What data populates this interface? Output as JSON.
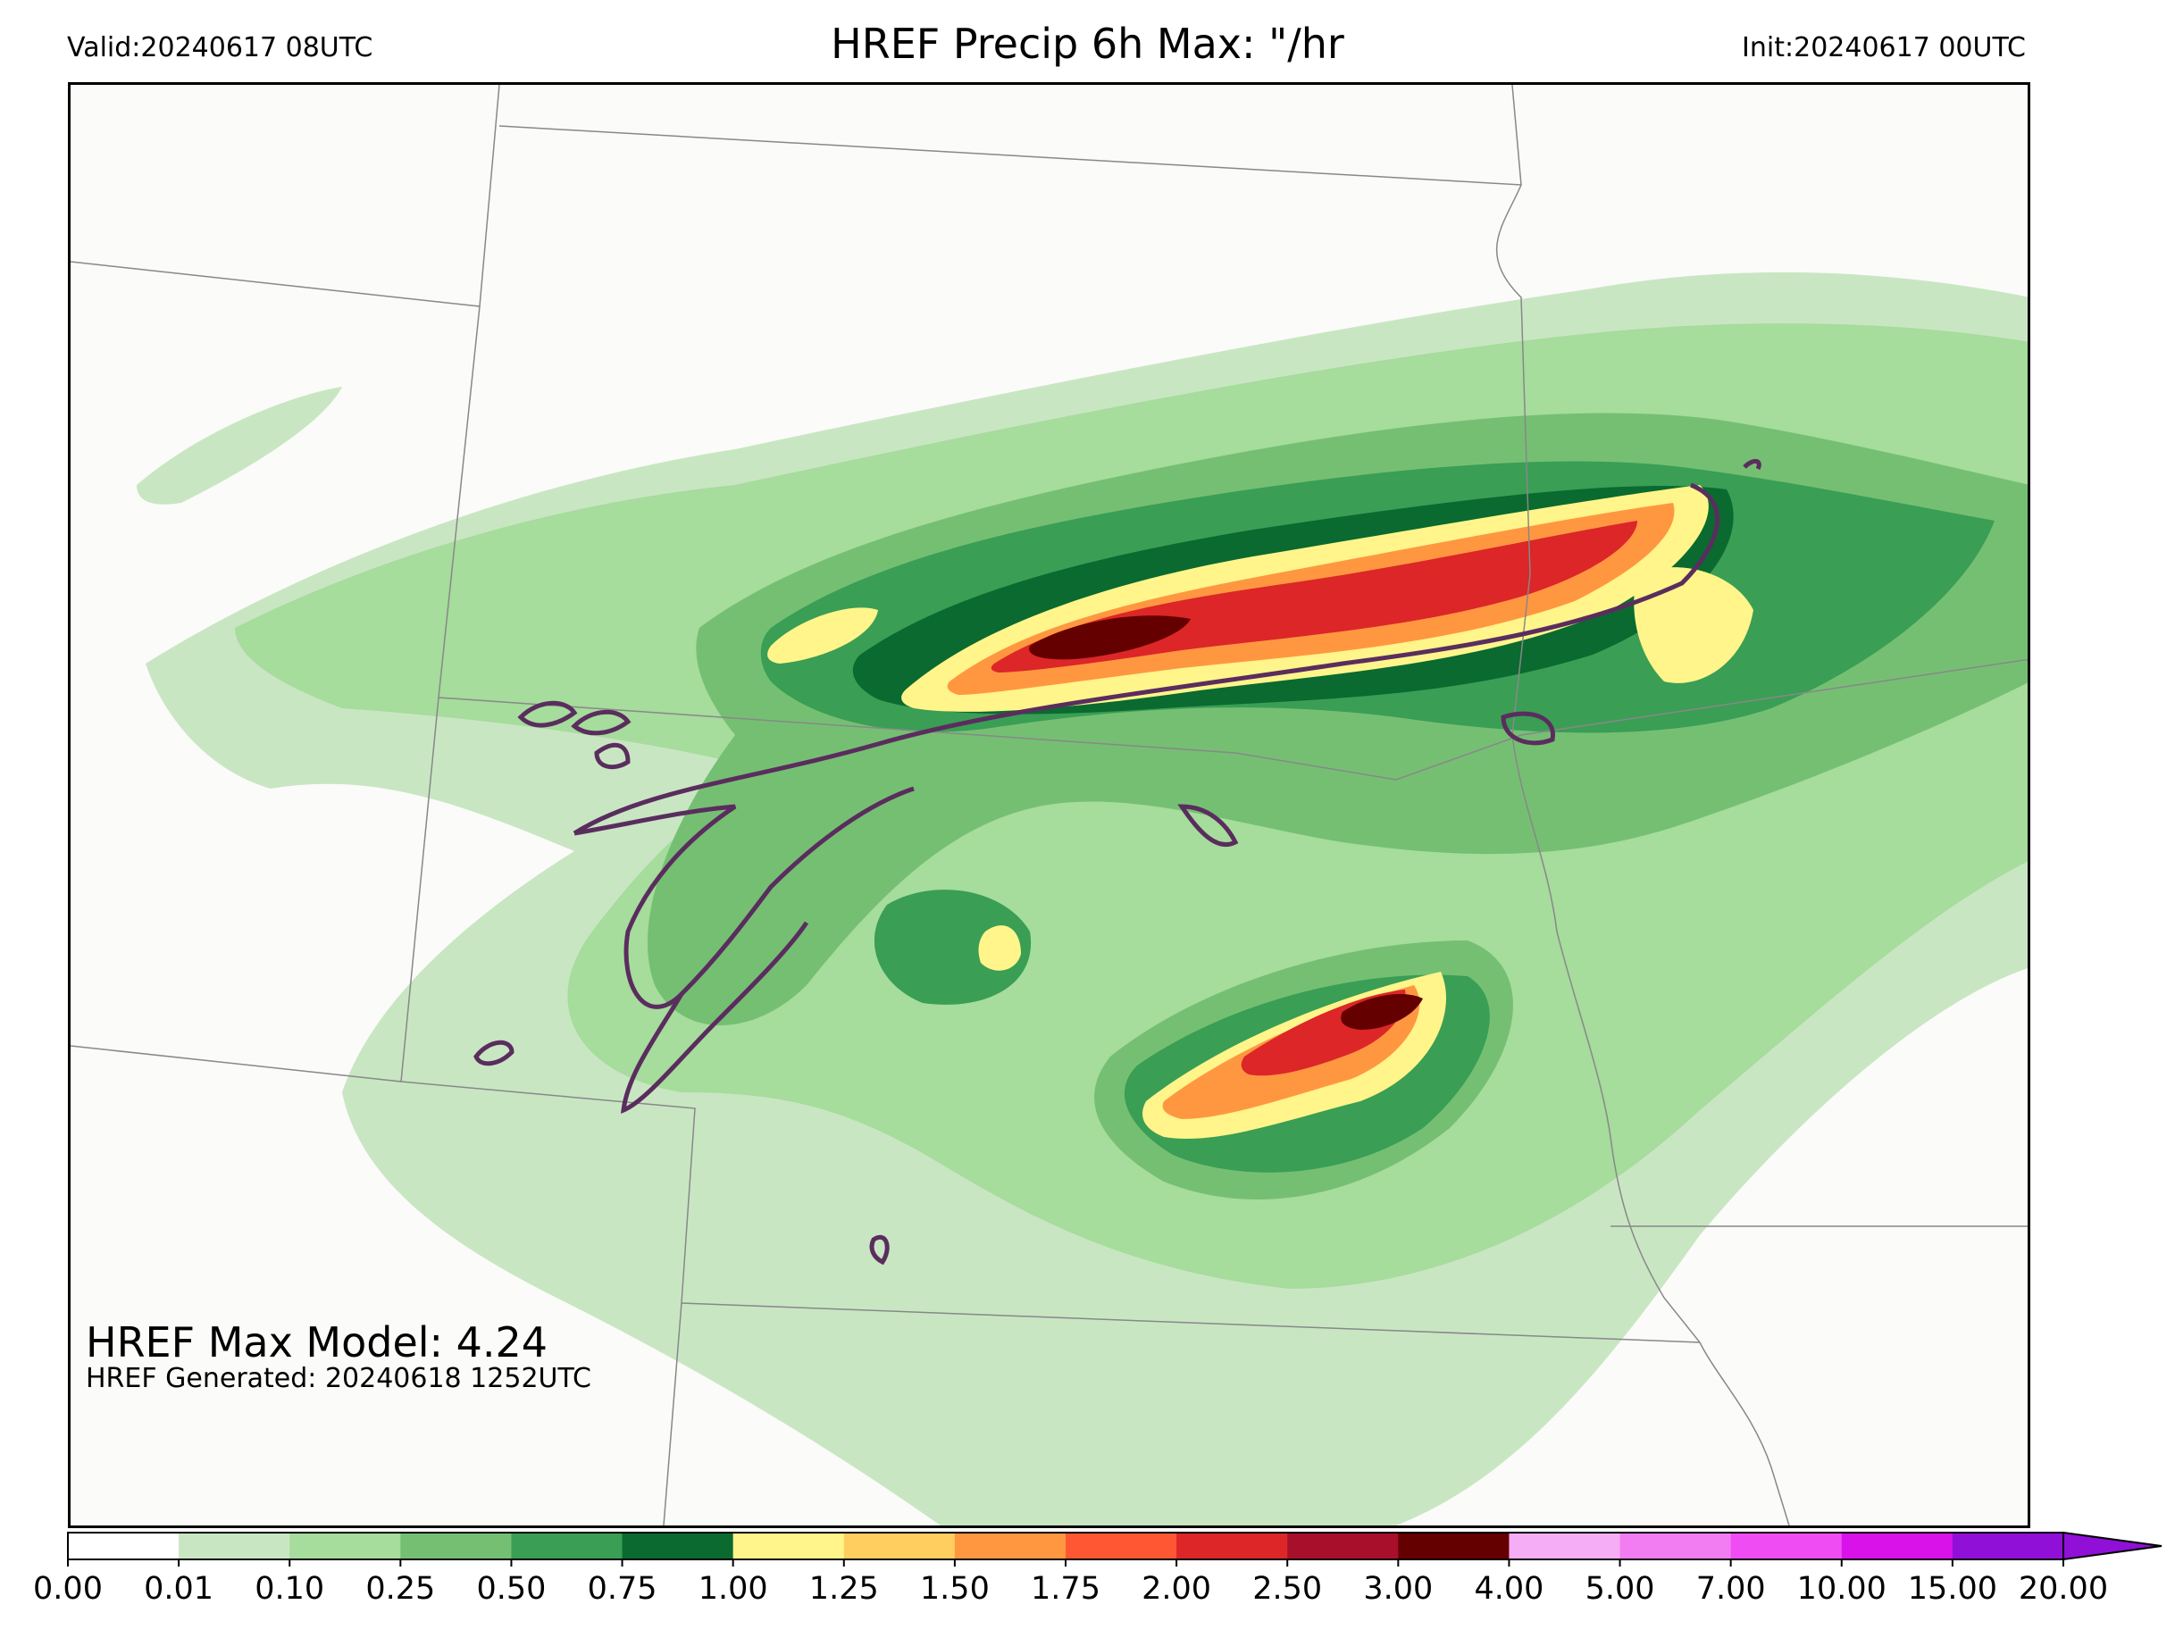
{
  "header": {
    "valid": "Valid:20240617 08UTC",
    "title": "HREF Precip 6h Max: \"/hr",
    "init": "Init:20240617 00UTC"
  },
  "annotations": {
    "max_model": "HREF Max Model: 4.24",
    "generated": "HREF Generated: 20240618 1252UTC"
  },
  "colorbar": {
    "ticks": [
      "0.00",
      "0.01",
      "0.10",
      "0.25",
      "0.50",
      "0.75",
      "1.00",
      "1.25",
      "1.50",
      "1.75",
      "2.00",
      "2.50",
      "3.00",
      "4.00",
      "5.00",
      "7.00",
      "10.00",
      "15.00",
      "20.00"
    ],
    "colors": [
      "#ffffff",
      "#c9e6c3",
      "#a6dc9c",
      "#75bf73",
      "#3a9e55",
      "#0a6a30",
      "#fff58a",
      "#ffce5f",
      "#ff9741",
      "#ff5733",
      "#dc2628",
      "#a80f2a",
      "#650000",
      "#f5aef5",
      "#f27df2",
      "#f04cf4",
      "#d912ea",
      "#9010d8"
    ],
    "extend": "max"
  },
  "map": {
    "max_value": 4.24,
    "contour_color": "#5a2d5e",
    "border_color": "#888888"
  }
}
